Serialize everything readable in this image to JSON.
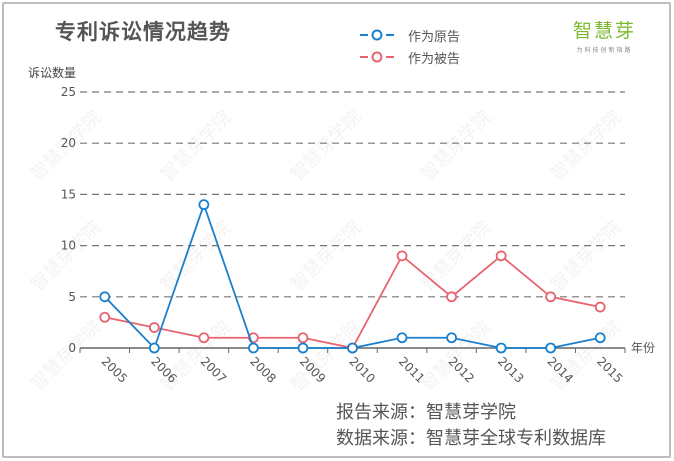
{
  "chart_data": {
    "type": "line",
    "title": "专利诉讼情况趋势",
    "xlabel": "年份",
    "ylabel": "诉讼数量",
    "ylim": [
      0,
      25
    ],
    "yticks": [
      0,
      5,
      10,
      15,
      20,
      25
    ],
    "grid": true,
    "legend_position": "top",
    "categories": [
      "2005",
      "2006",
      "2007",
      "2008",
      "2009",
      "2010",
      "2011",
      "2012",
      "2013",
      "2014",
      "2015"
    ],
    "series": [
      {
        "name": "作为原告",
        "color": "#1a7fcc",
        "values": [
          5,
          0,
          14,
          0,
          0,
          0,
          1,
          1,
          0,
          0,
          1
        ]
      },
      {
        "name": "作为被告",
        "color": "#e8626f",
        "values": [
          3,
          2,
          1,
          1,
          1,
          0,
          9,
          5,
          9,
          5,
          4
        ]
      }
    ]
  },
  "header": {
    "title": "专利诉讼情况趋势",
    "y_axis_label": "诉讼数量",
    "x_axis_label": "年份"
  },
  "legend": {
    "items": [
      {
        "label": "作为原告",
        "color": "#1a7fcc"
      },
      {
        "label": "作为被告",
        "color": "#e8626f"
      }
    ]
  },
  "logo": {
    "name": "智慧芽",
    "slogan": "为科技创新指路",
    "color": "#7cb82f"
  },
  "watermark": "智慧芽学院",
  "footer": {
    "report_source": "报告来源：智慧芽学院",
    "data_source": "数据来源：智慧芽全球专利数据库"
  }
}
